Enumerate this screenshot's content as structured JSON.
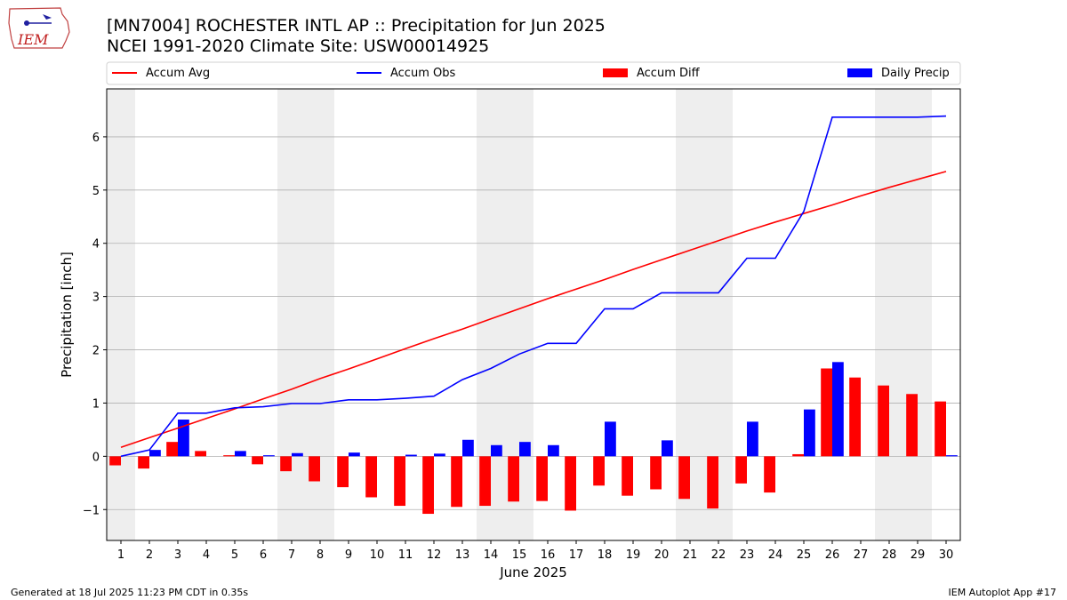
{
  "header": {
    "title_line1": "[MN7004] ROCHESTER INTL AP :: Precipitation for Jun 2025",
    "title_line2": "NCEI 1991-2020 Climate Site: USW00014925",
    "logo_text": "IEM"
  },
  "footer": {
    "generated": "Generated at 18 Jul 2025 11:23 PM CDT in 0.35s",
    "app": "IEM Autoplot App #17"
  },
  "colors": {
    "accum_avg": "#ff0000",
    "accum_obs": "#0000ff",
    "accum_diff": "#ff0000",
    "daily_precip": "#0000ff",
    "weekend_shade": "#eeeeee",
    "grid": "#b0b0b0"
  },
  "chart_data": {
    "type": "bar",
    "title": "[MN7004] ROCHESTER INTL AP :: Precipitation for Jun 2025",
    "subtitle": "NCEI 1991-2020 Climate Site: USW00014925",
    "xlabel": "June 2025",
    "ylabel": "Precipitation [inch]",
    "x": [
      1,
      2,
      3,
      4,
      5,
      6,
      7,
      8,
      9,
      10,
      11,
      12,
      13,
      14,
      15,
      16,
      17,
      18,
      19,
      20,
      21,
      22,
      23,
      24,
      25,
      26,
      27,
      28,
      29,
      30
    ],
    "xlim": [
      0.5,
      30.5
    ],
    "ylim": [
      -1.58,
      6.9
    ],
    "yticks": [
      -1,
      0,
      1,
      2,
      3,
      4,
      5,
      6
    ],
    "yticklabels": [
      "−1",
      "0",
      "1",
      "2",
      "3",
      "4",
      "5",
      "6"
    ],
    "grid": "horizontal",
    "legend_placement": "top",
    "weekend_shading": [
      [
        0.5,
        1.5
      ],
      [
        6.5,
        8.5
      ],
      [
        13.5,
        15.5
      ],
      [
        20.5,
        22.5
      ],
      [
        27.5,
        29.5
      ]
    ],
    "series": [
      {
        "name": "Accum Avg",
        "kind": "line",
        "values": [
          0.17,
          0.35,
          0.53,
          0.71,
          0.89,
          1.08,
          1.26,
          1.46,
          1.64,
          1.83,
          2.02,
          2.21,
          2.39,
          2.58,
          2.77,
          2.96,
          3.14,
          3.32,
          3.51,
          3.69,
          3.87,
          4.05,
          4.23,
          4.4,
          4.56,
          4.72,
          4.89,
          5.05,
          5.2,
          5.35
        ]
      },
      {
        "name": "Accum Obs",
        "kind": "line",
        "values": [
          0.0,
          0.12,
          0.81,
          0.81,
          0.91,
          0.93,
          0.99,
          0.99,
          1.06,
          1.06,
          1.09,
          1.13,
          1.44,
          1.65,
          1.92,
          2.12,
          2.12,
          2.77,
          2.77,
          3.07,
          3.07,
          3.07,
          3.72,
          3.72,
          4.6,
          6.37,
          6.37,
          6.37,
          6.37,
          6.39
        ]
      },
      {
        "name": "Accum Diff",
        "kind": "bar",
        "values": [
          -0.17,
          -0.23,
          0.27,
          0.1,
          0.02,
          -0.15,
          -0.28,
          -0.47,
          -0.58,
          -0.77,
          -0.93,
          -1.08,
          -0.95,
          -0.93,
          -0.85,
          -0.84,
          -1.02,
          -0.55,
          -0.74,
          -0.62,
          -0.8,
          -0.98,
          -0.51,
          -0.68,
          0.04,
          1.65,
          1.48,
          1.33,
          1.17,
          1.03
        ]
      },
      {
        "name": "Daily Precip",
        "kind": "bar",
        "values": [
          0.0,
          0.12,
          0.69,
          0.0,
          0.1,
          0.02,
          0.06,
          0.0,
          0.07,
          0.0,
          0.03,
          0.05,
          0.31,
          0.21,
          0.27,
          0.21,
          0.0,
          0.65,
          0.0,
          0.3,
          0.0,
          0.0,
          0.65,
          0.0,
          0.88,
          1.77,
          0.0,
          0.0,
          0.0,
          0.02
        ]
      }
    ]
  }
}
